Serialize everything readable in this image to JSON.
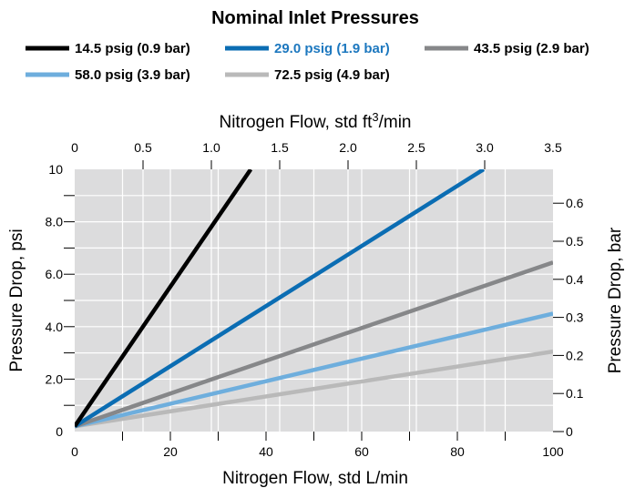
{
  "chart_data": {
    "type": "line",
    "title": "Nominal Inlet Pressures",
    "xlabel": "Nitrogen Flow, std L/min",
    "xlim": [
      0,
      100
    ],
    "xticks": [
      0,
      20,
      40,
      60,
      80,
      100
    ],
    "xticks_minor": [
      10,
      30,
      50,
      70,
      90
    ],
    "x2label_prefix": "Nitrogen Flow, std ft",
    "x2label_sup": "3",
    "x2label_suffix": "/min",
    "x2lim": [
      0,
      3.5
    ],
    "x2ticks": [
      "0",
      "0.5",
      "1.0",
      "1.5",
      "2.0",
      "2.5",
      "3.0",
      "3.5"
    ],
    "ylabel": "Pressure Drop, psi",
    "ylim": [
      0,
      10
    ],
    "yticks": [
      "0",
      "2.0",
      "4.0",
      "6.0",
      "8.0",
      "10"
    ],
    "yticks_minor": [
      1,
      3,
      5,
      7,
      9
    ],
    "y2label": "Pressure Drop, bar",
    "y2lim": [
      0,
      0.689
    ],
    "y2ticks": [
      "0",
      "0.1",
      "0.2",
      "0.3",
      "0.4",
      "0.5",
      "0.6"
    ],
    "grid": true,
    "legend_position": "top",
    "series": [
      {
        "name": "14.5 psig (0.9 bar)",
        "color": "#000000",
        "x": [
          0,
          36.8
        ],
        "y": [
          0.2,
          10
        ]
      },
      {
        "name": "29.0 psig (1.9 bar)",
        "color": "#0b6db3",
        "label_color": "#1d78bf",
        "x": [
          0,
          85.5
        ],
        "y": [
          0.2,
          10
        ]
      },
      {
        "name": "43.5 psig (2.9 bar)",
        "color": "#868789",
        "x": [
          0,
          100
        ],
        "y": [
          0.2,
          6.45
        ]
      },
      {
        "name": "58.0 psig (3.9 bar)",
        "color": "#6eaedd",
        "x": [
          0,
          100
        ],
        "y": [
          0.2,
          4.5
        ]
      },
      {
        "name": "72.5 psig (4.9 bar)",
        "color": "#b9b9b9",
        "x": [
          0,
          100
        ],
        "y": [
          0.2,
          3.05
        ]
      }
    ]
  }
}
